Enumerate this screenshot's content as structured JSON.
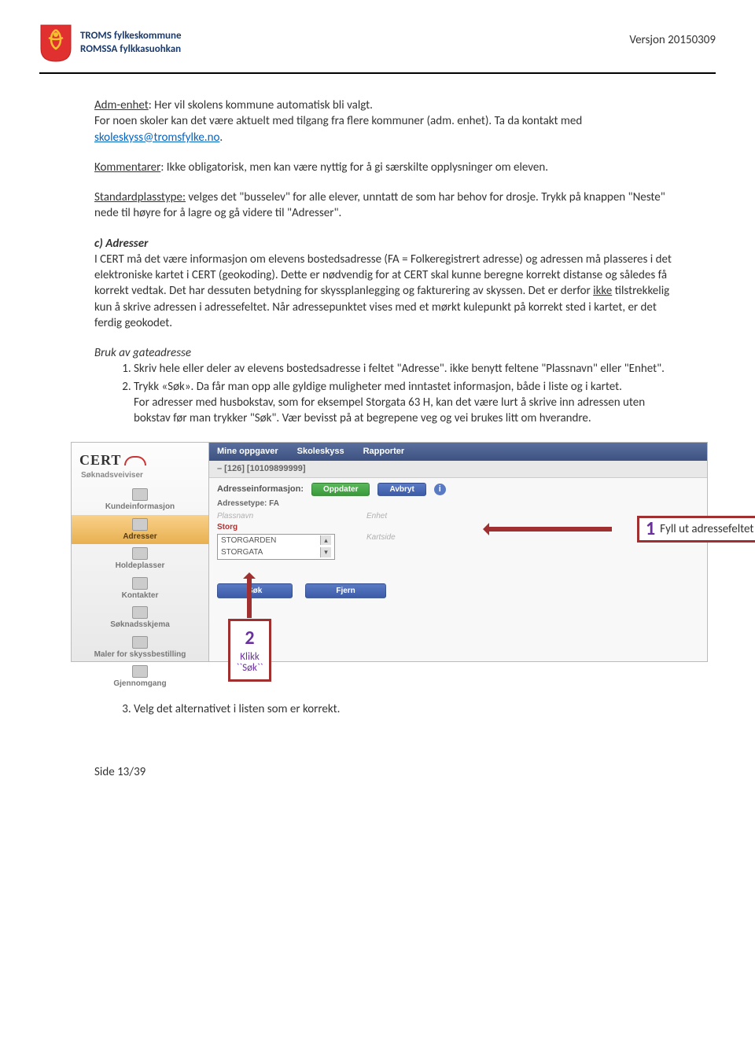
{
  "header": {
    "org1": "TROMS fylkeskommune",
    "org2": "ROMSSA fylkkasuohkan",
    "version": "Versjon 20150309",
    "logo_shield_color": "#e03030",
    "logo_figure_color": "#f5c030"
  },
  "p1_label": "Adm-enhet",
  "p1_text": ": Her vil skolens kommune automatisk bli valgt.",
  "p1_line2a": "For noen skoler kan det være aktuelt med tilgang fra flere kommuner (adm. enhet). Ta da kontakt med ",
  "p1_email": "skoleskyss@tromsfylke.no",
  "p1_end": ".",
  "p2_label": "Kommentarer",
  "p2_text": ": Ikke obligatorisk, men kan være nyttig for å gi særskilte opplysninger om eleven.",
  "p3_label": "Standardplasstype:",
  "p3_text": " velges det \"busselev\" for alle elever, unntatt de som har behov for drosje. Trykk på knappen \"Neste\" nede til høyre for å lagre og gå videre til \"Adresser\".",
  "sec_c_title": "c)  Adresser",
  "sec_c_body_a": "I CERT må det være informasjon om elevens bostedsadresse (FA = Folkeregistrert adresse) og adressen må plasseres i det elektroniske kartet i CERT (geokoding). Dette er nødvendig for at CERT skal kunne beregne korrekt distanse og således få korrekt vedtak. Det har dessuten betydning for skyssplanlegging og  fakturering av skyssen. Det er derfor ",
  "sec_c_ikke": "ikke",
  "sec_c_body_b": " tilstrekkelig kun å skrive adressen i adressefeltet. Når adressepunktet vises med et mørkt kulepunkt på korrekt sted i kartet, er det ferdig geokodet.",
  "sub_heading": "Bruk av gateadresse",
  "steps": [
    "Skriv hele eller deler av elevens bostedsadresse i feltet \"Adresse\". ikke benytt feltene \"Plassnavn\" eller \"Enhet\".",
    "Trykk «Søk». Da får man opp alle gyldige muligheter med inntastet informasjon, både i liste og i kartet."
  ],
  "step2_extra": "For adresser med husbokstav, som for eksempel Storgata 63 H, kan det være lurt å skrive inn adressen uten bokstav før man trykker \"Søk\". Vær bevisst på at begrepene veg og vei brukes litt om hverandre.",
  "step3": "Velg det alternativet i listen som er korrekt.",
  "screenshot": {
    "cert": "CERT",
    "side_subtitle": "Søknadsveiviser",
    "menu": [
      "Mine oppgaver",
      "Skoleskyss",
      "Rapporter"
    ],
    "record_title": "– [126] [10109899999]",
    "side_items": [
      "Kundeinformasjon",
      "Adresser",
      "Holdeplasser",
      "Kontakter",
      "Søknadsskjema",
      "Maler for skyssbestilling",
      "Gjennomgang"
    ],
    "active_side_index": 1,
    "addrinfo_label": "Adresseinformasjon:",
    "btn_oppdater": "Oppdater",
    "btn_avbryt": "Avbryt",
    "addrtype": "Adressetype: FA",
    "placeholder_plassnavn": "Plassnavn",
    "placeholder_enhet": "Enhet",
    "placeholder_kartside": "Kartside",
    "typed": "Storg",
    "options": [
      "STORGARDEN",
      "STORGATA"
    ],
    "btn_sok": "Søk",
    "btn_fjern": "Fjern"
  },
  "callouts": {
    "c1_num": "1",
    "c1_text": "Fyll ut adressefeltet",
    "c2_num": "2",
    "c2_line1": "Klikk",
    "c2_line2": "``Søk``"
  },
  "footer_page": "Side 13/39"
}
